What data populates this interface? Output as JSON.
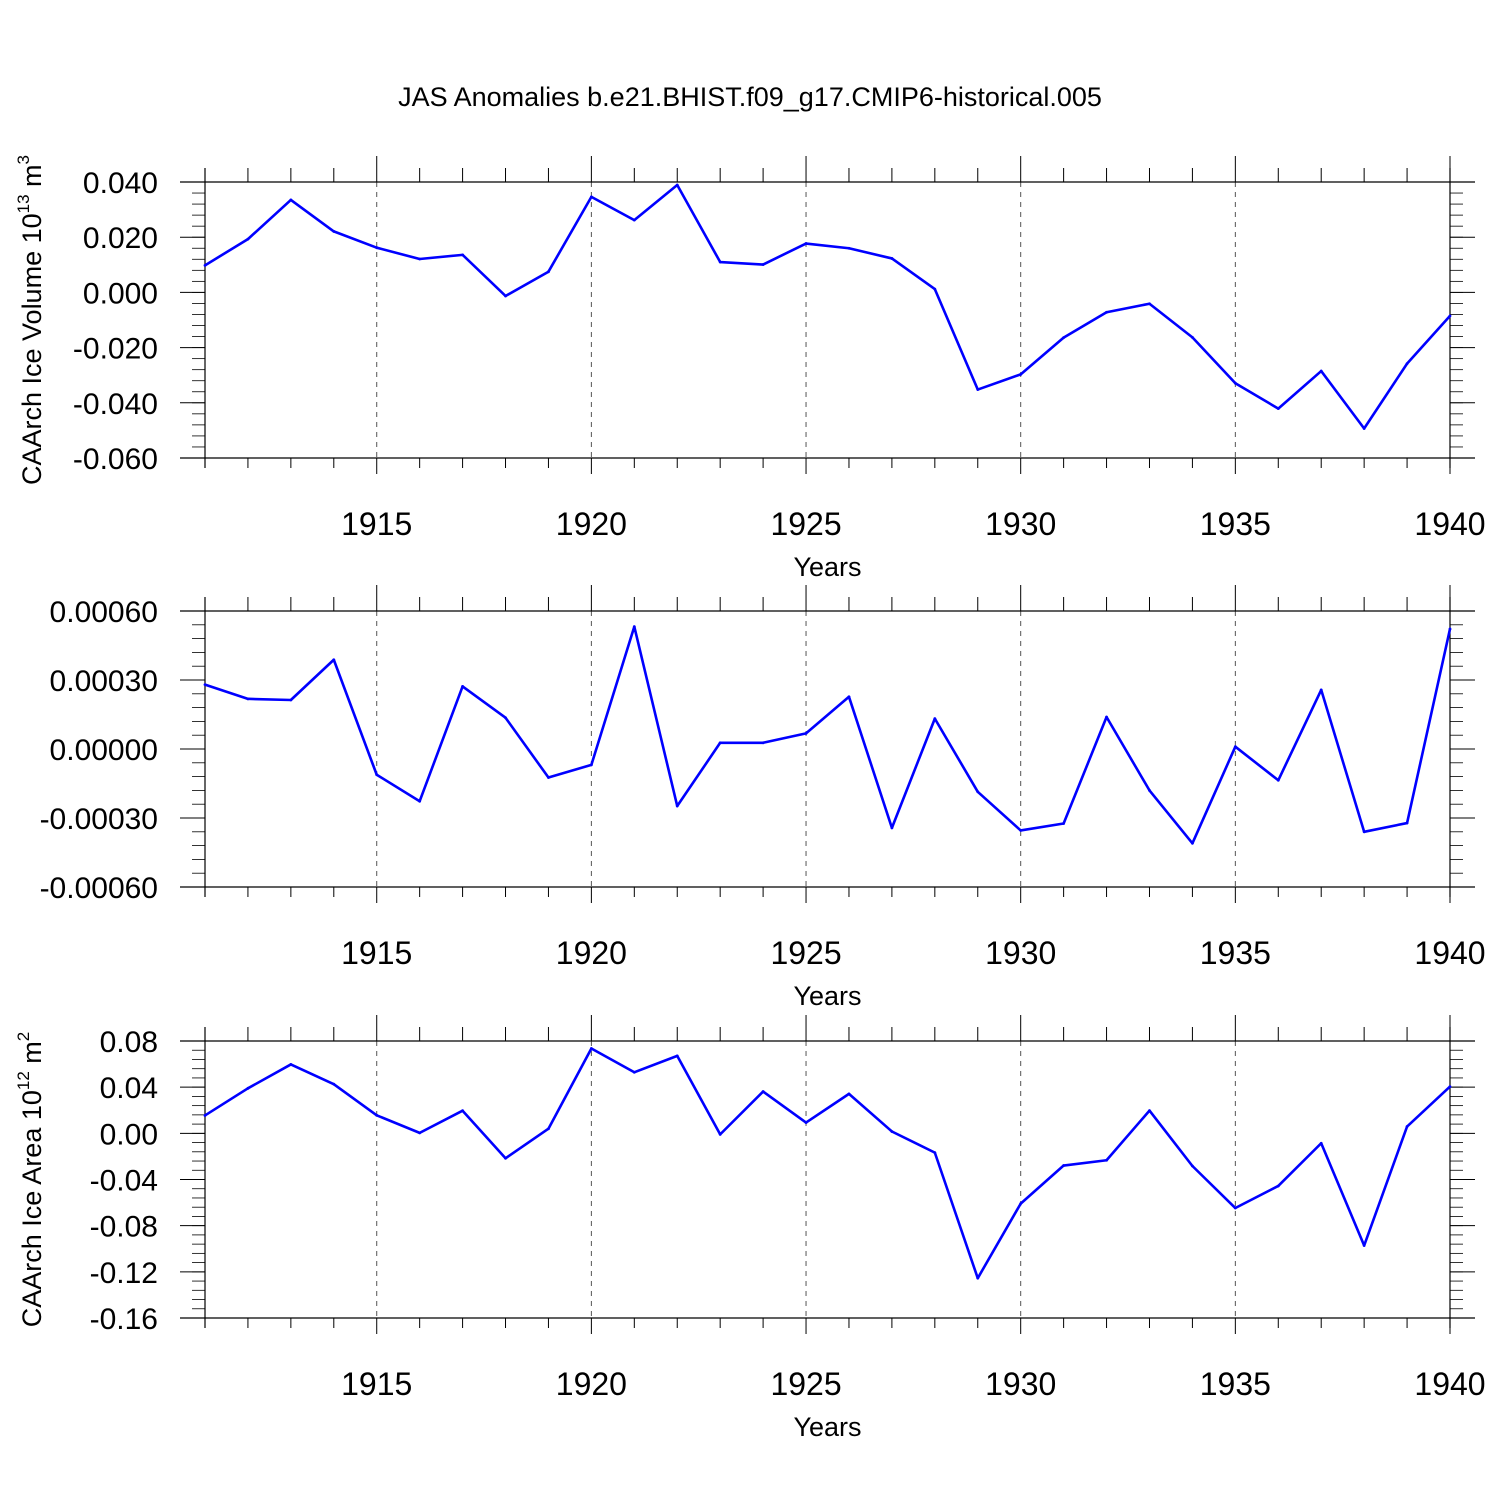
{
  "title": "JAS Anomalies b.e21.BHIST.f09_g17.CMIP6-historical.005",
  "colors": {
    "series": "#0000ff",
    "axis": "#000000",
    "grid": "#555555"
  },
  "chart_data": [
    {
      "type": "line",
      "ylabel": "CAArch Ice Volume 10",
      "ylabel_exp": "13",
      "ylabel_unit": " m",
      "ylabel_unit_exp": "3",
      "xlabel": "Years",
      "xlim": [
        1911,
        1940
      ],
      "ylim": [
        -0.06,
        0.04
      ],
      "xticks": [
        1915,
        1920,
        1925,
        1930,
        1935,
        1940
      ],
      "yticks": [
        0.04,
        0.02,
        0.0,
        -0.02,
        -0.04,
        -0.06
      ],
      "ytick_labels": [
        "0.040",
        "0.020",
        "0.000",
        "-0.020",
        "-0.040",
        "-0.060"
      ],
      "x": [
        1911,
        1912,
        1913,
        1914,
        1915,
        1916,
        1917,
        1918,
        1919,
        1920,
        1921,
        1922,
        1923,
        1924,
        1925,
        1926,
        1927,
        1928,
        1929,
        1930,
        1931,
        1932,
        1933,
        1934,
        1935,
        1936,
        1937,
        1938,
        1939,
        1940
      ],
      "values": [
        0.0098,
        0.0193,
        0.0335,
        0.0221,
        0.0162,
        0.0121,
        0.0136,
        -0.0013,
        0.0075,
        0.0346,
        0.0262,
        0.0389,
        0.011,
        0.0101,
        0.0177,
        0.016,
        0.0123,
        0.0012,
        -0.0352,
        -0.0297,
        -0.0164,
        -0.0072,
        -0.0041,
        -0.0163,
        -0.0329,
        -0.0421,
        -0.0285,
        -0.0493,
        -0.0258,
        -0.0085
      ]
    },
    {
      "type": "line",
      "ylabel": "",
      "ylabel_exp": "",
      "ylabel_unit": "",
      "ylabel_unit_exp": "",
      "xlabel": "Years",
      "xlim": [
        1911,
        1940
      ],
      "ylim": [
        -0.0006,
        0.0006
      ],
      "xticks": [
        1915,
        1920,
        1925,
        1930,
        1935,
        1940
      ],
      "yticks": [
        0.0006,
        0.0003,
        0.0,
        -0.0003,
        -0.0006
      ],
      "ytick_labels": [
        "0.00060",
        "0.00030",
        "0.00000",
        "-0.00030",
        "-0.00060"
      ],
      "x": [
        1911,
        1912,
        1913,
        1914,
        1915,
        1916,
        1917,
        1918,
        1919,
        1920,
        1921,
        1922,
        1923,
        1924,
        1925,
        1926,
        1927,
        1928,
        1929,
        1930,
        1931,
        1932,
        1933,
        1934,
        1935,
        1936,
        1937,
        1938,
        1939,
        1940
      ],
      "values": [
        0.00028,
        0.000218,
        0.000213,
        0.000388,
        -0.000112,
        -0.000227,
        0.000272,
        0.000136,
        -0.000124,
        -6.9e-05,
        0.000532,
        -0.000248,
        2.7e-05,
        2.7e-05,
        6.8e-05,
        0.000227,
        -0.000343,
        0.000132,
        -0.000186,
        -0.000354,
        -0.000324,
        0.000139,
        -0.00018,
        -0.00041,
        1e-05,
        -0.000136,
        0.000257,
        -0.00036,
        -0.000322,
        0.000522
      ]
    },
    {
      "type": "line",
      "ylabel": "CAArch Ice Area 10",
      "ylabel_exp": "12",
      "ylabel_unit": " m",
      "ylabel_unit_exp": "2",
      "xlabel": "Years",
      "xlim": [
        1911,
        1940
      ],
      "ylim": [
        -0.16,
        0.08
      ],
      "xticks": [
        1915,
        1920,
        1925,
        1930,
        1935,
        1940
      ],
      "yticks": [
        0.08,
        0.04,
        0.0,
        -0.04,
        -0.08,
        -0.12,
        -0.16
      ],
      "ytick_labels": [
        "0.08",
        "0.04",
        "0.00",
        "-0.04",
        "-0.08",
        "-0.12",
        "-0.16"
      ],
      "x": [
        1911,
        1912,
        1913,
        1914,
        1915,
        1916,
        1917,
        1918,
        1919,
        1920,
        1921,
        1922,
        1923,
        1924,
        1925,
        1926,
        1927,
        1928,
        1929,
        1930,
        1931,
        1932,
        1933,
        1934,
        1935,
        1936,
        1937,
        1938,
        1939,
        1940
      ],
      "values": [
        0.0155,
        0.039,
        0.0597,
        0.0426,
        0.0156,
        0.0004,
        0.0196,
        -0.0216,
        0.004,
        0.0735,
        0.0529,
        0.0671,
        -0.0009,
        0.0362,
        0.0093,
        0.0342,
        0.0016,
        -0.0167,
        -0.1255,
        -0.0609,
        -0.0279,
        -0.0233,
        0.0197,
        -0.0283,
        -0.0647,
        -0.0456,
        -0.0086,
        -0.0972,
        0.0059,
        0.0405
      ]
    }
  ]
}
